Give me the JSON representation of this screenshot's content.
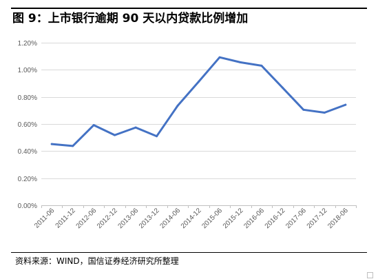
{
  "figure": {
    "title": "图 9：上市银行逾期 90 天以内贷款比例增加",
    "source": "资料来源：WIND，国信证券经济研究所整理"
  },
  "colors": {
    "line": "#4472C4",
    "grid": "#D9D9D9",
    "tick_text": "#595959"
  },
  "chart_data": {
    "type": "line",
    "title": "",
    "xlabel": "",
    "ylabel": "",
    "ylim": [
      0,
      0.012
    ],
    "y_ticks": [
      0,
      0.002,
      0.004,
      0.006,
      0.008,
      0.01,
      0.012
    ],
    "y_tick_labels": [
      "0.00%",
      "0.20%",
      "0.40%",
      "0.60%",
      "0.80%",
      "1.00%",
      "1.20%"
    ],
    "grid": "horizontal",
    "legend": "none",
    "categories": [
      "2011-06",
      "2011-12",
      "2012-06",
      "2012-12",
      "2013-06",
      "2013-12",
      "2014-06",
      "2014-12",
      "2015-06",
      "2015-12",
      "2016-06",
      "2016-12",
      "2017-06",
      "2017-12",
      "2018-06"
    ],
    "series": [
      {
        "values": [
          0.00452,
          0.00438,
          0.00592,
          0.00518,
          0.00574,
          0.0051,
          0.00735,
          0.00912,
          0.01092,
          0.01055,
          0.0103,
          0.00868,
          0.00705,
          0.00684,
          0.00742
        ]
      }
    ]
  }
}
